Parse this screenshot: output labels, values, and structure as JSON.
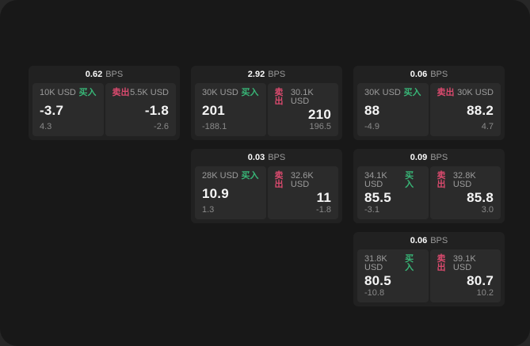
{
  "labels": {
    "bps_unit": "BPS",
    "buy": "买入",
    "sell": "卖出"
  },
  "colors": {
    "buy_green": "#38b677",
    "sell_pink": "#da4a6e",
    "panel_bg": "#181818",
    "card_bg": "#212121",
    "cell_bg": "#2b2b2b"
  },
  "cards": [
    {
      "bps": "0.62",
      "buy": {
        "amount": "10K USD",
        "price": "-3.7",
        "delta": "4.3"
      },
      "sell": {
        "amount": "5.5K USD",
        "price": "-1.8",
        "delta": "-2.6"
      }
    },
    {
      "bps": "2.92",
      "buy": {
        "amount": "30K USD",
        "price": "201",
        "delta": "-188.1"
      },
      "sell": {
        "amount": "30.1K USD",
        "price": "210",
        "delta": "196.5"
      }
    },
    {
      "bps": "0.06",
      "buy": {
        "amount": "30K USD",
        "price": "88",
        "delta": "-4.9"
      },
      "sell": {
        "amount": "30K USD",
        "price": "88.2",
        "delta": "4.7"
      }
    },
    {
      "bps": "0.03",
      "buy": {
        "amount": "28K USD",
        "price": "10.9",
        "delta": "1.3"
      },
      "sell": {
        "amount": "32.6K USD",
        "price": "11",
        "delta": "-1.8"
      }
    },
    {
      "bps": "0.09",
      "buy": {
        "amount": "34.1K USD",
        "price": "85.5",
        "delta": "-3.1"
      },
      "sell": {
        "amount": "32.8K USD",
        "price": "85.8",
        "delta": "3.0"
      }
    },
    {
      "bps": "0.06",
      "buy": {
        "amount": "31.8K USD",
        "price": "80.5",
        "delta": "-10.8"
      },
      "sell": {
        "amount": "39.1K USD",
        "price": "80.7",
        "delta": "10.2"
      }
    }
  ]
}
